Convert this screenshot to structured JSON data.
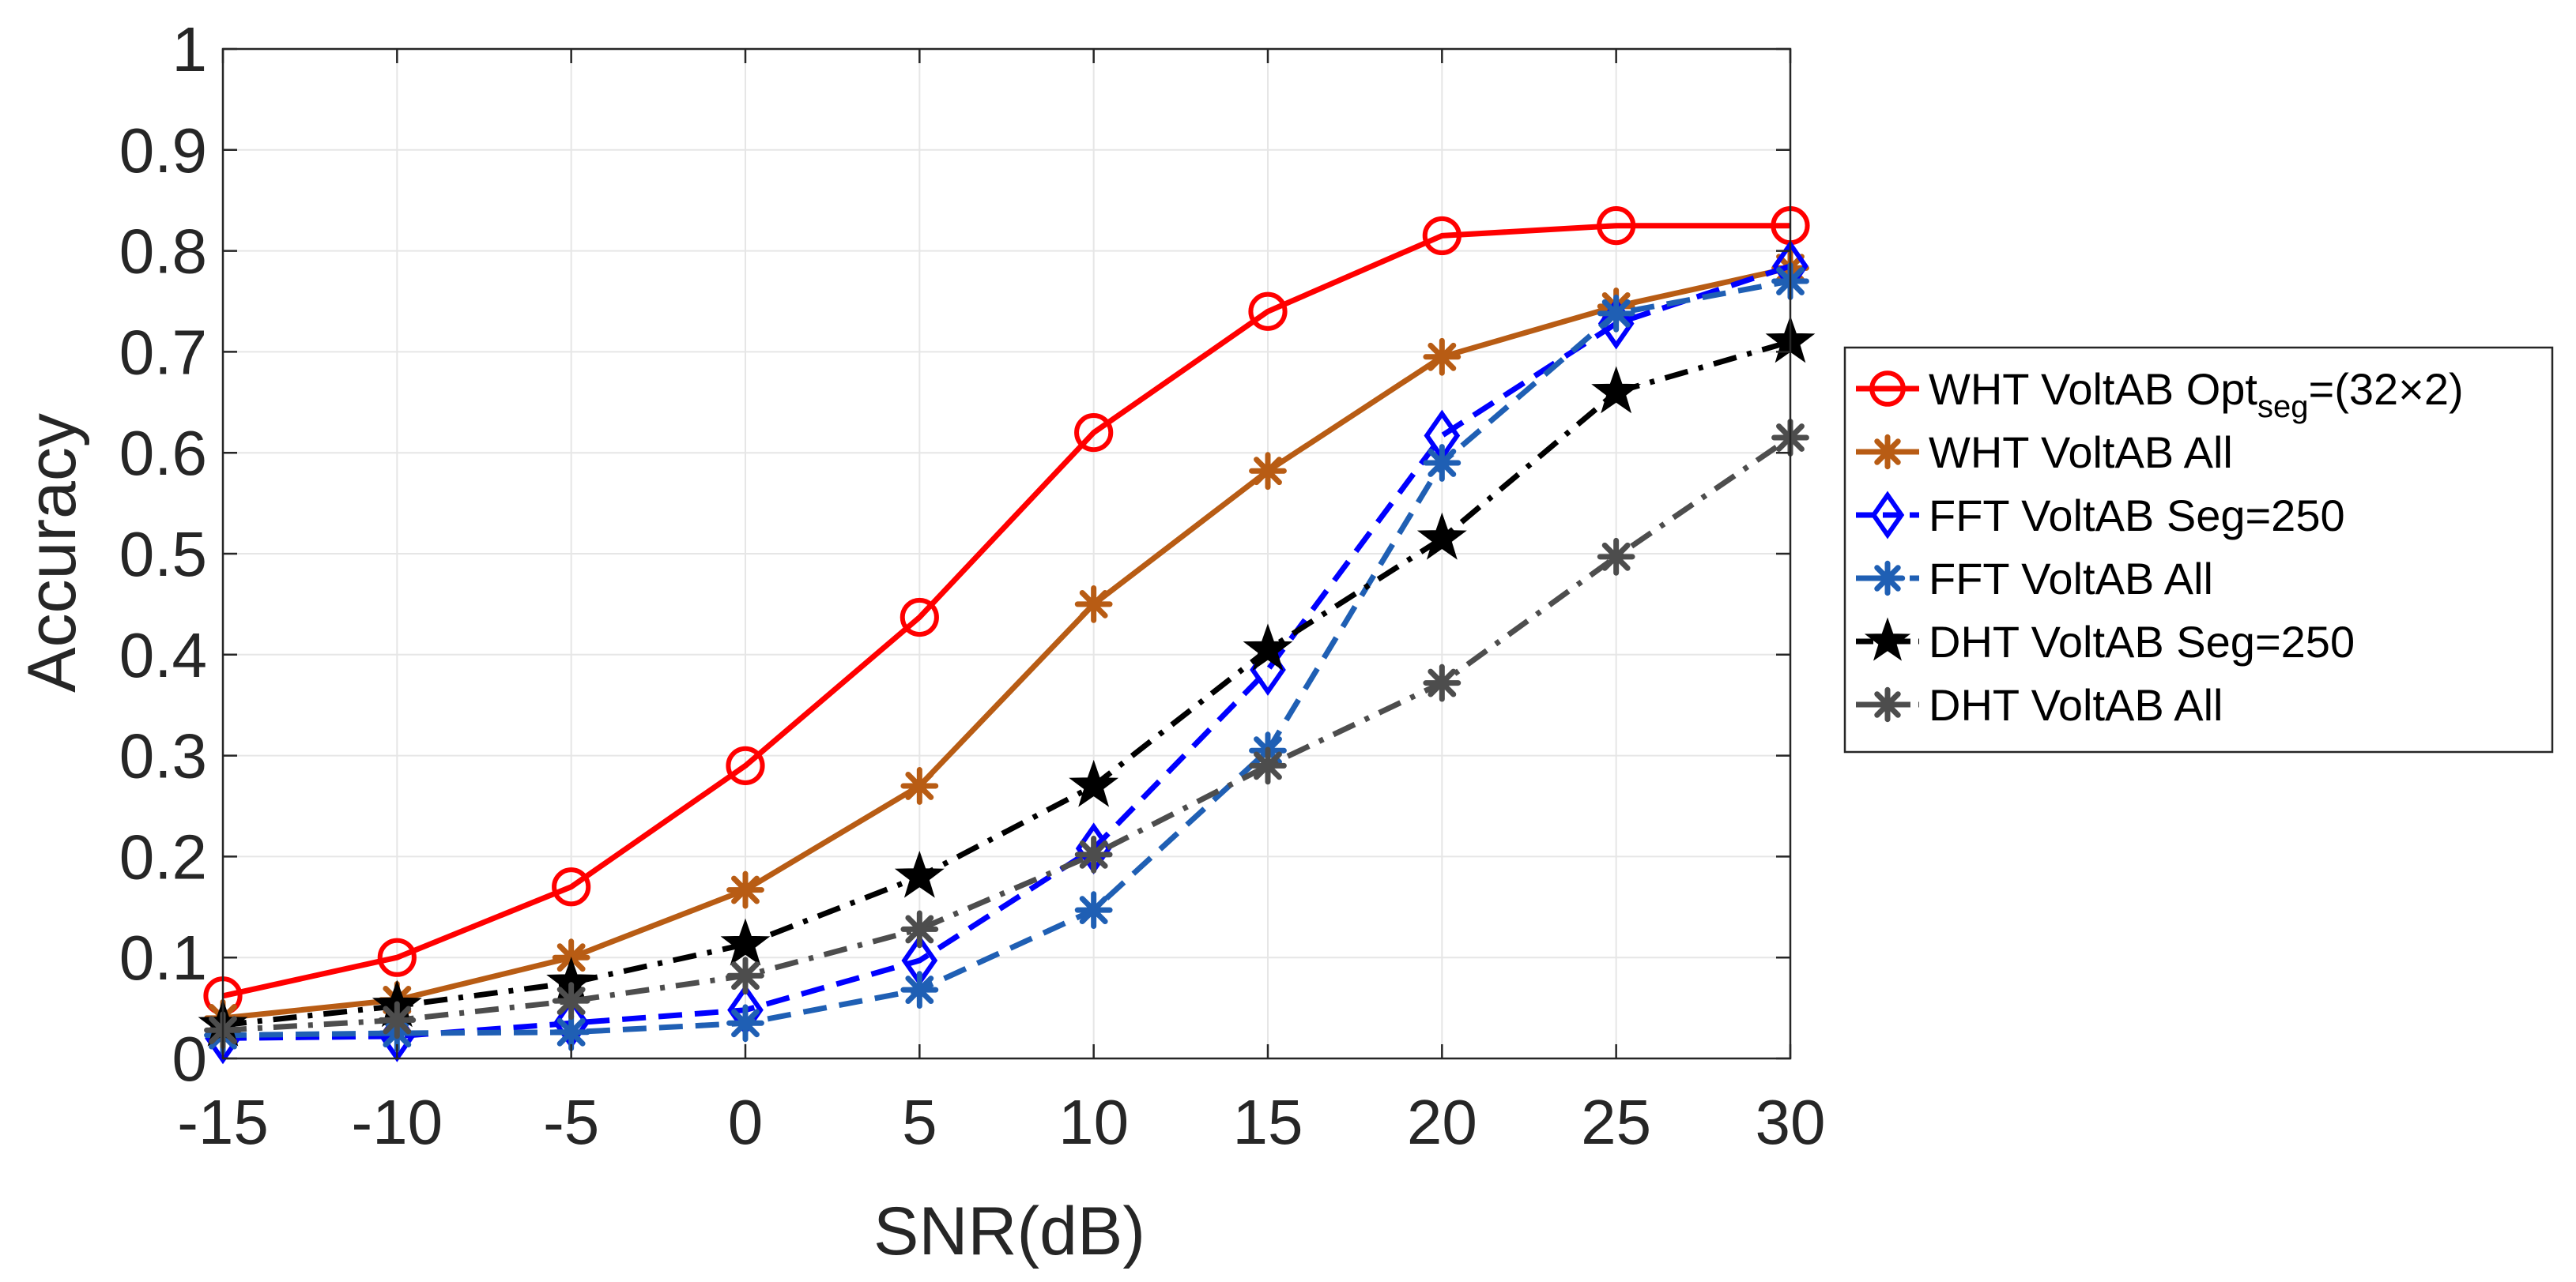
{
  "chart_data": {
    "type": "line",
    "title": "",
    "xlabel": "SNR(dB)",
    "ylabel": "Accuracy",
    "x": [
      -15,
      -10,
      -5,
      0,
      5,
      10,
      15,
      20,
      25,
      30
    ],
    "x_tick_labels": [
      "-15",
      "-10",
      "-5",
      "0",
      "5",
      "10",
      "15",
      "20",
      "25",
      "30"
    ],
    "y_tick_labels": [
      "0",
      "0.1",
      "0.2",
      "0.3",
      "0.4",
      "0.5",
      "0.6",
      "0.7",
      "0.8",
      "0.9",
      "1"
    ],
    "xlim": [
      -15,
      30
    ],
    "ylim": [
      0,
      1
    ],
    "grid": true,
    "legend_position": "right outside",
    "series": [
      {
        "name": "WHT VoltAB Opt",
        "name_subscript": "seg",
        "name_suffix": "=(32×2)",
        "color": "#ff0000",
        "line_style": "solid",
        "marker": "circle",
        "values": [
          0.062,
          0.1,
          0.17,
          0.29,
          0.437,
          0.62,
          0.74,
          0.815,
          0.825,
          0.825
        ]
      },
      {
        "name": "WHT  VoltAB All",
        "color": "#b85c14",
        "line_style": "solid",
        "marker": "asterisk",
        "values": [
          0.04,
          0.058,
          0.1,
          0.167,
          0.27,
          0.45,
          0.582,
          0.695,
          0.745,
          0.783
        ]
      },
      {
        "name": "FFT VoltAB Seg=250",
        "color": "#0000ff",
        "line_style": "dashed",
        "marker": "diamond",
        "values": [
          0.02,
          0.022,
          0.035,
          0.048,
          0.097,
          0.208,
          0.385,
          0.617,
          0.728,
          0.785
        ]
      },
      {
        "name": "FFT VoltAB All",
        "color": "#1f5fb4",
        "line_style": "dashed",
        "marker": "asterisk",
        "values": [
          0.023,
          0.025,
          0.026,
          0.035,
          0.068,
          0.147,
          0.305,
          0.59,
          0.738,
          0.77
        ]
      },
      {
        "name": "DHT VoltAB Seg=250",
        "color": "#000000",
        "line_style": "dashdot",
        "marker": "star",
        "values": [
          0.033,
          0.052,
          0.075,
          0.113,
          0.18,
          0.27,
          0.405,
          0.515,
          0.66,
          0.71
        ]
      },
      {
        "name": "DHT VoltAB All",
        "color": "#4d4d4d",
        "line_style": "dashdot",
        "marker": "asterisk",
        "values": [
          0.028,
          0.038,
          0.057,
          0.082,
          0.128,
          0.202,
          0.29,
          0.372,
          0.497,
          0.615
        ]
      }
    ]
  }
}
